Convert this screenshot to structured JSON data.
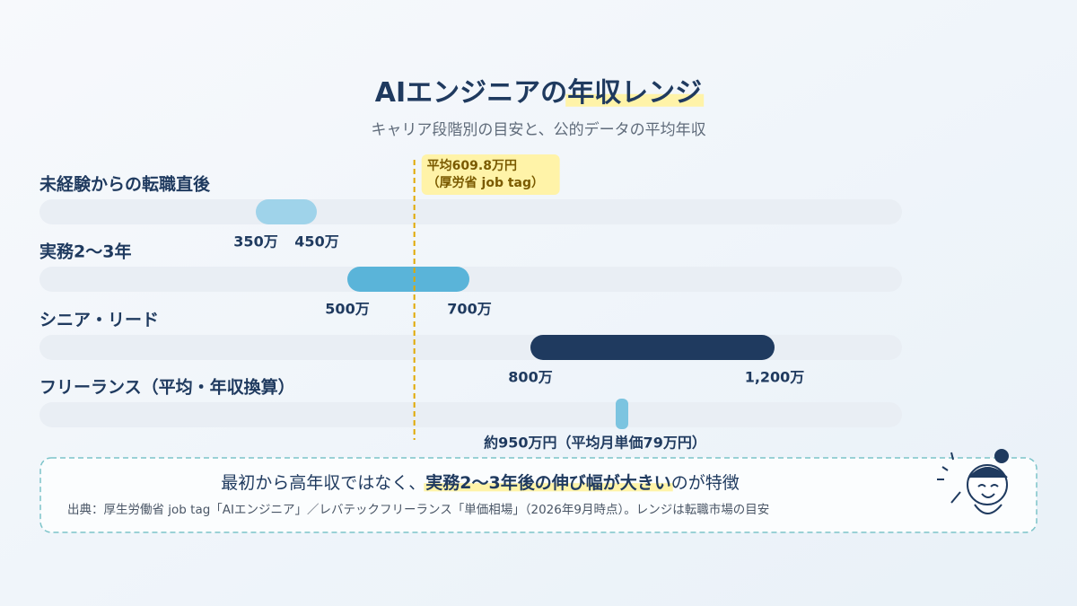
{
  "chart_data": {
    "type": "range-bar",
    "title": [
      "AIエンジニアの",
      "年収レンジ"
    ],
    "subtitle": "キャリア段階別の目安と、公的データの平均年収",
    "categories": [
      "未経験からの転職直後",
      "実務2〜3年",
      "シニア・リード",
      "フリーランス（平均・年収換算）"
    ],
    "low": [
      350,
      500,
      800,
      950
    ],
    "high": [
      450,
      700,
      1200,
      null
    ],
    "low_labels": [
      "350万",
      "500万",
      "800万",
      "約950万円（平均月単価79万円）"
    ],
    "high_labels": [
      "450万",
      "700万",
      "1,200万",
      null
    ],
    "colors": [
      "#9fd3ea",
      "#5ab4d9",
      "#1f3a5f",
      "#7cc4e0"
    ],
    "xlim": [
      0,
      1400
    ],
    "reference_line": {
      "value": 609.8,
      "label": [
        "平均609.8万円",
        "（厚労省 job tag）"
      ],
      "color": "#e0a800"
    },
    "note": [
      "最初から高年収ではなく、",
      "実務2〜3年後の伸び幅が大きい",
      "のが特徴"
    ],
    "source": "出典：厚生労働省 job tag「AIエンジニア」／レバテックフリーランス「単価相場」（2026年9月時点）。レンジは転職市場の目安"
  }
}
